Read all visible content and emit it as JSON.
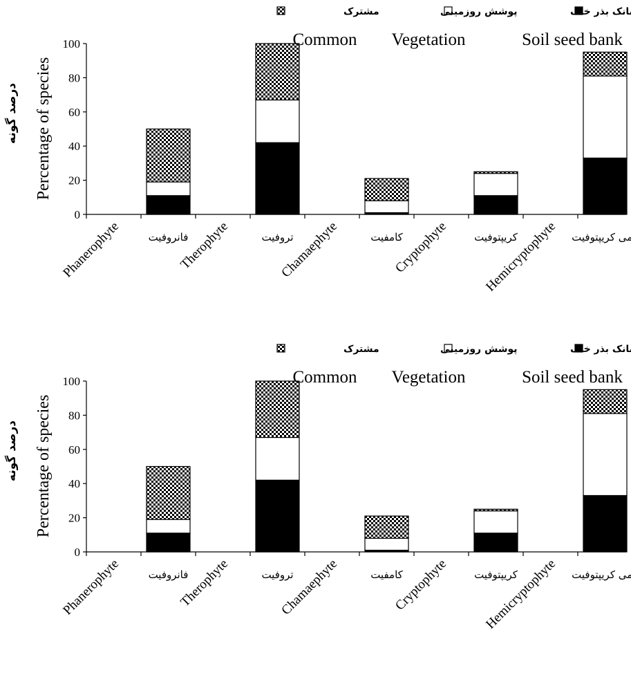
{
  "chart_data": [
    {
      "type": "bar",
      "stacked": true,
      "categories": [
        {
          "fa": "فانروفیت",
          "en": "Phanerophyte"
        },
        {
          "fa": "تروفیت",
          "en": "Therophyte"
        },
        {
          "fa": "کامفیت",
          "en": "Chamaephyte"
        },
        {
          "fa": "کریپتوفیت",
          "en": "Cryptophyte"
        },
        {
          "fa": "همی کریپتوفیت",
          "en": "Hemicryptophyte"
        }
      ],
      "series": [
        {
          "name": "بانک بذر خاک",
          "name_en": "Soil seed bank",
          "fill": "solid",
          "color": "#000000",
          "values": [
            11,
            42,
            1,
            11,
            33
          ]
        },
        {
          "name": "پوشش روزمینی",
          "name_en": "Vegetation",
          "fill": "white",
          "color": "#ffffff",
          "values": [
            8,
            25,
            7,
            13,
            48
          ]
        },
        {
          "name": "مشترک",
          "name_en": "Common",
          "fill": "pattern",
          "color": "#000000",
          "values": [
            31,
            33,
            13,
            1,
            14
          ]
        }
      ],
      "ylabel": "Percentage of species",
      "ylabel_fa": "درصد گونه",
      "ylim": [
        0,
        100
      ],
      "yticks": [
        0,
        20,
        40,
        60,
        80,
        100
      ],
      "grid": false,
      "legend": "top"
    },
    {
      "type": "bar",
      "stacked": true,
      "categories": [
        {
          "fa": "فانروفیت",
          "en": "Phanerophyte"
        },
        {
          "fa": "تروفیت",
          "en": "Therophyte"
        },
        {
          "fa": "کامفیت",
          "en": "Chamaephyte"
        },
        {
          "fa": "کریپتوفیت",
          "en": "Cryptophyte"
        },
        {
          "fa": "همی کریپتوفیت",
          "en": "Hemicryptophyte"
        }
      ],
      "series": [
        {
          "name": "بانک بذر خاک",
          "name_en": "Soil seed bank",
          "fill": "solid",
          "color": "#000000",
          "values": [
            11,
            42,
            1,
            11,
            33
          ]
        },
        {
          "name": "پوشش روزمینی",
          "name_en": "Vegetation",
          "fill": "white",
          "color": "#ffffff",
          "values": [
            8,
            25,
            7,
            13,
            48
          ]
        },
        {
          "name": "مشترک",
          "name_en": "Common",
          "fill": "pattern",
          "color": "#000000",
          "values": [
            31,
            33,
            13,
            1,
            14
          ]
        }
      ],
      "ylabel": "Percentage of species",
      "ylabel_fa": "درصد گونه",
      "ylim": [
        0,
        100
      ],
      "yticks": [
        0,
        20,
        40,
        60,
        80,
        100
      ],
      "grid": false,
      "legend": "top"
    }
  ]
}
